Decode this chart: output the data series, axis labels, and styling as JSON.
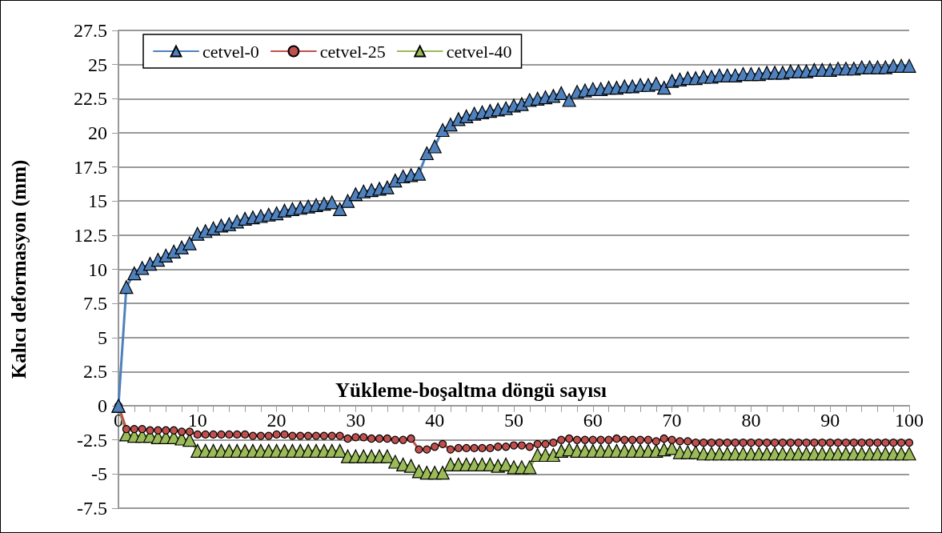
{
  "chart_data": {
    "type": "line",
    "xlabel": "Yükleme-boşaltma döngü sayısı",
    "ylabel": "Kalıcı deformasyon (mm)",
    "x": [
      0,
      1,
      2,
      3,
      4,
      5,
      6,
      7,
      8,
      9,
      10,
      11,
      12,
      13,
      14,
      15,
      16,
      17,
      18,
      19,
      20,
      21,
      22,
      23,
      24,
      25,
      26,
      27,
      28,
      29,
      30,
      31,
      32,
      33,
      34,
      35,
      36,
      37,
      38,
      39,
      40,
      41,
      42,
      43,
      44,
      45,
      46,
      47,
      48,
      49,
      50,
      51,
      52,
      53,
      54,
      55,
      56,
      57,
      58,
      59,
      60,
      61,
      62,
      63,
      64,
      65,
      66,
      67,
      68,
      69,
      70,
      71,
      72,
      73,
      74,
      75,
      76,
      77,
      78,
      79,
      80,
      81,
      82,
      83,
      84,
      85,
      86,
      87,
      88,
      89,
      90,
      91,
      92,
      93,
      94,
      95,
      96,
      97,
      98,
      99,
      100
    ],
    "series": [
      {
        "name": "cetvel-0",
        "color": "#4f81bd",
        "marker": "triangle",
        "values": [
          0,
          8.7,
          9.7,
          10.1,
          10.4,
          10.7,
          11.0,
          11.3,
          11.6,
          11.9,
          12.6,
          12.8,
          13.0,
          13.2,
          13.3,
          13.5,
          13.7,
          13.8,
          13.9,
          14.0,
          14.1,
          14.3,
          14.4,
          14.5,
          14.6,
          14.7,
          14.8,
          14.9,
          14.4,
          15.0,
          15.5,
          15.7,
          15.8,
          15.9,
          16.0,
          16.5,
          16.8,
          16.9,
          17.0,
          18.5,
          19.0,
          20.2,
          20.6,
          21.0,
          21.2,
          21.4,
          21.5,
          21.6,
          21.7,
          21.8,
          22.0,
          22.1,
          22.4,
          22.5,
          22.6,
          22.7,
          22.9,
          22.4,
          23.0,
          23.1,
          23.2,
          23.2,
          23.3,
          23.3,
          23.4,
          23.4,
          23.5,
          23.5,
          23.6,
          23.3,
          23.8,
          23.9,
          24.0,
          24.0,
          24.1,
          24.1,
          24.2,
          24.2,
          24.2,
          24.3,
          24.3,
          24.3,
          24.4,
          24.4,
          24.4,
          24.5,
          24.5,
          24.5,
          24.6,
          24.6,
          24.6,
          24.7,
          24.7,
          24.7,
          24.8,
          24.8,
          24.8,
          24.8,
          24.9,
          24.9,
          24.9
        ]
      },
      {
        "name": "cetvel-25",
        "color": "#c0504d",
        "marker": "circle",
        "values": [
          0,
          -1.7,
          -1.7,
          -1.7,
          -1.8,
          -1.8,
          -1.8,
          -1.8,
          -1.9,
          -1.9,
          -2.1,
          -2.1,
          -2.1,
          -2.1,
          -2.1,
          -2.1,
          -2.1,
          -2.2,
          -2.2,
          -2.2,
          -2.1,
          -2.1,
          -2.2,
          -2.2,
          -2.2,
          -2.2,
          -2.2,
          -2.2,
          -2.2,
          -2.4,
          -2.3,
          -2.3,
          -2.4,
          -2.4,
          -2.4,
          -2.5,
          -2.5,
          -2.4,
          -3.2,
          -3.2,
          -3.0,
          -2.8,
          -3.2,
          -3.1,
          -3.1,
          -3.1,
          -3.1,
          -3.1,
          -3.0,
          -3.0,
          -2.9,
          -2.9,
          -3.0,
          -2.8,
          -2.8,
          -2.7,
          -2.5,
          -2.4,
          -2.5,
          -2.5,
          -2.5,
          -2.5,
          -2.5,
          -2.4,
          -2.5,
          -2.5,
          -2.5,
          -2.5,
          -2.6,
          -2.4,
          -2.5,
          -2.6,
          -2.6,
          -2.7,
          -2.7,
          -2.7,
          -2.7,
          -2.7,
          -2.7,
          -2.7,
          -2.7,
          -2.7,
          -2.7,
          -2.7,
          -2.7,
          -2.7,
          -2.7,
          -2.7,
          -2.7,
          -2.7,
          -2.7,
          -2.7,
          -2.7,
          -2.7,
          -2.7,
          -2.7,
          -2.7,
          -2.7,
          -2.7,
          -2.7,
          -2.7
        ]
      },
      {
        "name": "cetvel-40",
        "color": "#9bbb59",
        "marker": "triangle",
        "values": [
          0,
          -2.1,
          -2.2,
          -2.2,
          -2.2,
          -2.3,
          -2.3,
          -2.3,
          -2.4,
          -2.5,
          -3.3,
          -3.3,
          -3.3,
          -3.3,
          -3.3,
          -3.3,
          -3.3,
          -3.3,
          -3.3,
          -3.3,
          -3.3,
          -3.3,
          -3.3,
          -3.3,
          -3.3,
          -3.3,
          -3.3,
          -3.3,
          -3.3,
          -3.7,
          -3.7,
          -3.7,
          -3.7,
          -3.7,
          -3.7,
          -4.1,
          -4.3,
          -4.4,
          -4.8,
          -4.9,
          -4.9,
          -4.9,
          -4.3,
          -4.3,
          -4.3,
          -4.3,
          -4.3,
          -4.3,
          -4.4,
          -4.3,
          -4.5,
          -4.5,
          -4.5,
          -3.6,
          -3.6,
          -3.6,
          -3.3,
          -3.2,
          -3.3,
          -3.3,
          -3.3,
          -3.3,
          -3.3,
          -3.3,
          -3.3,
          -3.3,
          -3.3,
          -3.3,
          -3.3,
          -3.2,
          -3.1,
          -3.4,
          -3.4,
          -3.4,
          -3.5,
          -3.5,
          -3.5,
          -3.5,
          -3.5,
          -3.5,
          -3.5,
          -3.5,
          -3.5,
          -3.5,
          -3.5,
          -3.5,
          -3.5,
          -3.5,
          -3.5,
          -3.5,
          -3.5,
          -3.5,
          -3.5,
          -3.5,
          -3.5,
          -3.5,
          -3.5,
          -3.5,
          -3.5,
          -3.5,
          -3.5
        ]
      }
    ],
    "xlim": [
      0,
      100
    ],
    "xticks": [
      0,
      10,
      20,
      30,
      40,
      50,
      60,
      70,
      80,
      90,
      100
    ],
    "ylim": [
      -7.5,
      27.5
    ],
    "yticks": [
      -7.5,
      -5,
      -2.5,
      0,
      2.5,
      5,
      7.5,
      10,
      12.5,
      15,
      17.5,
      20,
      22.5,
      25,
      27.5
    ],
    "grid": "y",
    "legend": "top left",
    "line_style": "solid"
  }
}
